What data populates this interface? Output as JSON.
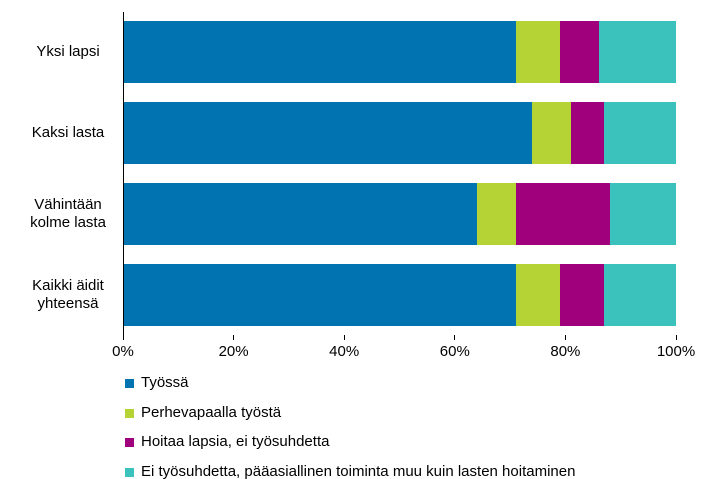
{
  "chart_data": {
    "type": "stacked-bar-horizontal",
    "categories": [
      "Yksi lapsi",
      "Kaksi lasta",
      "Vähintään kolme lasta",
      "Kaikki äidit yhteensä"
    ],
    "series": [
      {
        "name": "Työssä",
        "color": "#0073b0",
        "values": [
          71,
          74,
          64,
          71
        ]
      },
      {
        "name": "Perhevapaalla työstä",
        "color": "#b5d334",
        "values": [
          8,
          7,
          7,
          8
        ]
      },
      {
        "name": "Hoitaa lapsia, ei työsuhdetta",
        "color": "#a0007c",
        "values": [
          7,
          6,
          17,
          8
        ]
      },
      {
        "name": "Ei työsuhdetta, pääasiallinen toiminta muu kuin lasten hoitaminen",
        "color": "#3cc2bc",
        "values": [
          14,
          13,
          12,
          13
        ]
      }
    ],
    "xlim": [
      0,
      100
    ],
    "xticks": [
      {
        "value": 0,
        "label": "0%"
      },
      {
        "value": 20,
        "label": "20%"
      },
      {
        "value": 40,
        "label": "40%"
      },
      {
        "value": 60,
        "label": "60%"
      },
      {
        "value": 80,
        "label": "80%"
      },
      {
        "value": 100,
        "label": "100%"
      }
    ],
    "grid": false,
    "legend": "bottom"
  }
}
